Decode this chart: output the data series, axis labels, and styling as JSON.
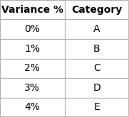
{
  "headers": [
    "Variance %",
    "Category"
  ],
  "rows": [
    [
      "0%",
      "A"
    ],
    [
      "1%",
      "B"
    ],
    [
      "2%",
      "C"
    ],
    [
      "3%",
      "D"
    ],
    [
      "4%",
      "E"
    ]
  ],
  "bg_color": "#ffffff",
  "border_color": "#b0b0b0",
  "header_font_size": 10,
  "cell_font_size": 10,
  "header_font_weight": "bold",
  "cell_font_weight": "normal",
  "text_color": "#000000",
  "fig_width": 1.81,
  "fig_height": 1.65,
  "dpi": 100
}
